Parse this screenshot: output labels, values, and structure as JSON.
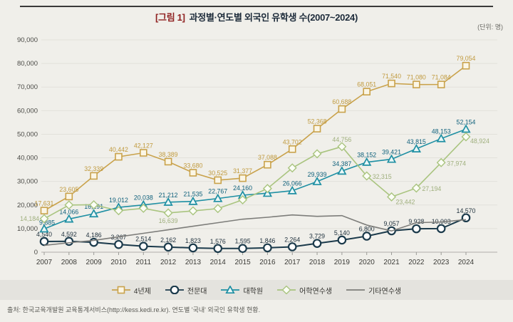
{
  "header": {
    "title_tag": "[그림 1]",
    "title_text": "과정별·연도별 외국인 유학생 수(2007~2024)",
    "unit_label": "(단위: 명)"
  },
  "footer": {
    "source": "출처: 한국교육개발원 교육통계서비스(http://kess.kedi.re.kr). 연도별 '국내' 외국인 유학생 현황."
  },
  "chart_data": {
    "type": "line",
    "title": "과정별·연도별 외국인 유학생 수(2007~2024)",
    "unit": "명",
    "x": [
      2007,
      2008,
      2009,
      2010,
      2011,
      2012,
      2013,
      2014,
      2015,
      2016,
      2017,
      2018,
      2019,
      2020,
      2021,
      2022,
      2023,
      2024
    ],
    "ylim": [
      0,
      90000
    ],
    "ytick_step": 10000,
    "grid": true,
    "legend_position": "bottom",
    "series": [
      {
        "name": "4년제",
        "marker": "square",
        "color": "#C9A24B",
        "marker_fill": "#FBF6E6",
        "label_color": "#C09A3E",
        "values": [
          17631,
          23605,
          32339,
          40442,
          42127,
          38389,
          33680,
          30525,
          31377,
          37088,
          43702,
          52368,
          60688,
          68051,
          71540,
          71080,
          71084,
          79054
        ],
        "labels": [
          "17,631",
          "23,605",
          "32,339",
          "40,442",
          "42,127",
          "38,389",
          "33,680",
          "30,525",
          "31,377",
          "37,088",
          "43,702",
          "52,368",
          "60,688",
          "68,051",
          "71,540",
          "71,080",
          "71,084",
          "79,054"
        ]
      },
      {
        "name": "전문대",
        "marker": "circle",
        "color": "#1B3A4B",
        "marker_fill": "#FFFFFF",
        "label_color": "#22333f",
        "values": [
          4540,
          4592,
          4186,
          3267,
          2514,
          2162,
          1823,
          1576,
          1595,
          1846,
          2264,
          3729,
          5140,
          6800,
          9057,
          9928,
          10003,
          14570
        ],
        "labels": [
          "4,540",
          "4,592",
          "4,186",
          "3,267",
          "2,514",
          "2,162",
          "1,823",
          "1,576",
          "1,595",
          "1,846",
          "2,264",
          "3,729",
          "5,140",
          "6,800",
          "9,057",
          "9,928",
          "10,003",
          "14,570"
        ]
      },
      {
        "name": "대학원",
        "marker": "triangle",
        "color": "#1E8FA3",
        "marker_fill": "#EAF7F7",
        "label_color": "#10617c",
        "values": [
          9885,
          14066,
          16291,
          19012,
          20038,
          21212,
          21535,
          22767,
          24160,
          25000,
          26066,
          29939,
          34387,
          38152,
          39421,
          43815,
          48153,
          52154
        ],
        "labels": [
          "9,885",
          "14,066",
          "16,291",
          "19,012",
          "20,038",
          "21,212",
          "21,535",
          "22,767",
          "24,160",
          null,
          "26,066",
          "29,939",
          "34,387",
          "38,152",
          "39,421",
          "43,815",
          "48,153",
          "52,154"
        ],
        "label_offsets": {
          "0": [
            4,
            -6,
            "middle"
          ]
        }
      },
      {
        "name": "어학연수생",
        "marker": "diamond",
        "color": "#A9C47F",
        "marker_fill": "#FBFDF6",
        "label_color": "#9FAF7D",
        "values": [
          14184,
          20000,
          20100,
          17600,
          18600,
          16639,
          17500,
          18500,
          22200,
          27000,
          35700,
          41700,
          44756,
          32315,
          23442,
          27194,
          37974,
          48924
        ],
        "labels": [
          "14,184",
          null,
          null,
          null,
          null,
          "16,639",
          null,
          null,
          null,
          null,
          null,
          null,
          "44,756",
          "32,315",
          "23,442",
          "27,194",
          "37,974",
          "48,924"
        ],
        "label_offsets": {
          "0": [
            -7,
            3,
            "end"
          ],
          "5": [
            0,
            14,
            "middle"
          ],
          "13": [
            8,
            4,
            "start"
          ],
          "14": [
            6,
            10,
            "start"
          ],
          "15": [
            8,
            4,
            "start"
          ],
          "16": [
            8,
            4,
            "start"
          ],
          "17": [
            6,
            9,
            "start"
          ]
        }
      },
      {
        "name": "기타연수생",
        "marker": "none",
        "color": "#7d7d7a",
        "marker_fill": "#FFFFFF",
        "label_color": "#7d7d7a",
        "values": [
          2900,
          4000,
          5000,
          6500,
          8000,
          9500,
          11000,
          12500,
          14000,
          14800,
          15800,
          15200,
          15500,
          11500,
          9000,
          12500,
          12800,
          13800
        ],
        "labels": [
          null,
          null,
          null,
          null,
          null,
          null,
          null,
          null,
          null,
          null,
          null,
          null,
          null,
          null,
          null,
          null,
          null,
          null
        ]
      }
    ]
  }
}
